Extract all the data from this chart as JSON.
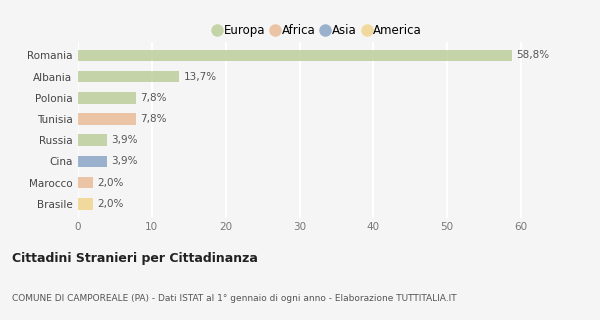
{
  "categories": [
    "Romania",
    "Albania",
    "Polonia",
    "Tunisia",
    "Russia",
    "Cina",
    "Marocco",
    "Brasile"
  ],
  "values": [
    58.8,
    13.7,
    7.8,
    7.8,
    3.9,
    3.9,
    2.0,
    2.0
  ],
  "labels": [
    "58,8%",
    "13,7%",
    "7,8%",
    "7,8%",
    "3,9%",
    "3,9%",
    "2,0%",
    "2,0%"
  ],
  "colors": [
    "#b5c98e",
    "#b5c98e",
    "#b5c98e",
    "#e8b48a",
    "#b5c98e",
    "#7b9bbf",
    "#e8b48a",
    "#f0d080"
  ],
  "legend": [
    {
      "label": "Europa",
      "color": "#b5c98e"
    },
    {
      "label": "Africa",
      "color": "#e8b48a"
    },
    {
      "label": "Asia",
      "color": "#7b9bbf"
    },
    {
      "label": "America",
      "color": "#f0d080"
    }
  ],
  "xlim": [
    0,
    65
  ],
  "xticks": [
    0,
    10,
    20,
    30,
    40,
    50,
    60
  ],
  "title_bold": "Cittadini Stranieri per Cittadinanza",
  "subtitle": "COMUNE DI CAMPOREALE (PA) - Dati ISTAT al 1° gennaio di ogni anno - Elaborazione TUTTITALIA.IT",
  "background_color": "#f5f5f5",
  "grid_color": "#ffffff",
  "bar_alpha": 0.75,
  "bar_height": 0.55
}
